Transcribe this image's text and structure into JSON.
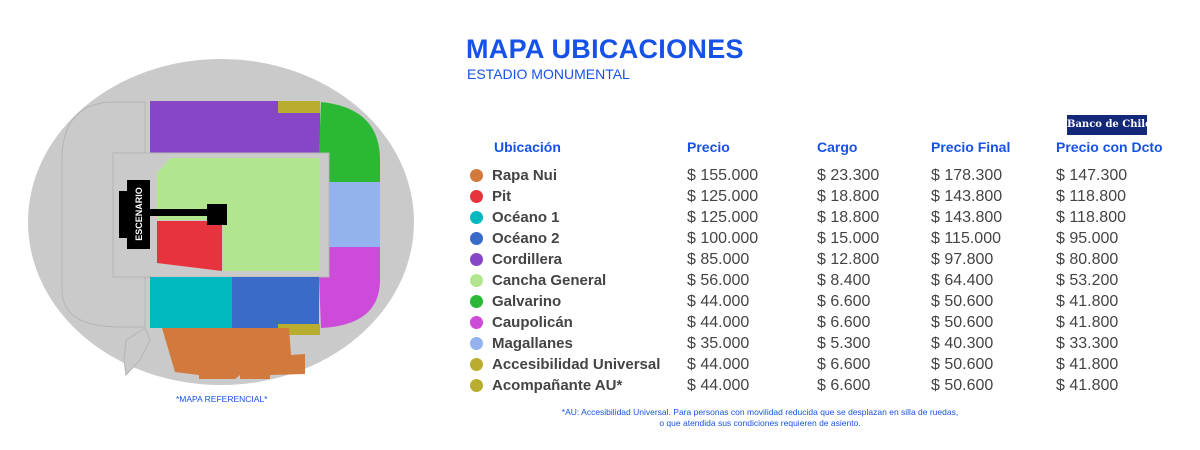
{
  "header": {
    "title": "MAPA UBICACIONES",
    "subtitle": "ESTADIO MONUMENTAL",
    "bank_logo": "Banco de Chile"
  },
  "map": {
    "stage_label": "ESCENARIO",
    "note": "*MAPA REFERENCIAL*"
  },
  "table": {
    "columns": [
      "Ubicación",
      "Precio",
      "Cargo",
      "Precio Final",
      "Precio con Dcto"
    ],
    "rows": [
      {
        "name": "Rapa Nui",
        "color": "#d27a3e",
        "precio": "$ 155.000",
        "cargo": "$ 23.300",
        "final": "$ 178.300",
        "dcto": "$ 147.300"
      },
      {
        "name": "Pit",
        "color": "#e8323e",
        "precio": "$ 125.000",
        "cargo": "$ 18.800",
        "final": "$ 143.800",
        "dcto": "$ 118.800"
      },
      {
        "name": "Océano 1",
        "color": "#00b8c0",
        "precio": "$ 125.000",
        "cargo": "$ 18.800",
        "final": "$ 143.800",
        "dcto": "$ 118.800"
      },
      {
        "name": "Océano 2",
        "color": "#3a6bc8",
        "precio": "$ 100.000",
        "cargo": "$ 15.000",
        "final": "$ 115.000",
        "dcto": "$ 95.000"
      },
      {
        "name": "Cordillera",
        "color": "#8646c6",
        "precio": "$ 85.000",
        "cargo": "$ 12.800",
        "final": "$ 97.800",
        "dcto": "$ 80.800"
      },
      {
        "name": "Cancha General",
        "color": "#b2e68e",
        "precio": "$ 56.000",
        "cargo": "$ 8.400",
        "final": "$ 64.400",
        "dcto": "$ 53.200"
      },
      {
        "name": "Galvarino",
        "color": "#2bb935",
        "precio": "$ 44.000",
        "cargo": "$ 6.600",
        "final": "$ 50.600",
        "dcto": "$ 41.800"
      },
      {
        "name": "Caupolicán",
        "color": "#cd4bd9",
        "precio": "$ 44.000",
        "cargo": "$ 6.600",
        "final": "$ 50.600",
        "dcto": "$ 41.800"
      },
      {
        "name": "Magallanes",
        "color": "#93b2ee",
        "precio": "$ 35.000",
        "cargo": "$ 5.300",
        "final": "$ 40.300",
        "dcto": "$ 33.300"
      },
      {
        "name": "Accesibilidad Universal",
        "color": "#b9ad2f",
        "precio": "$ 44.000",
        "cargo": "$ 6.600",
        "final": "$ 50.600",
        "dcto": "$ 41.800"
      },
      {
        "name": "Acompañante AU*",
        "color": "#b9ad2f",
        "precio": "$ 44.000",
        "cargo": "$ 6.600",
        "final": "$ 50.600",
        "dcto": "$ 41.800"
      }
    ]
  },
  "footnote": {
    "line1": "*AU: Accesibilidad Universal. Para personas con movilidad reducida que se desplazan en silla de ruedas,",
    "line2": "o que atendida sus condiciones requieren de asiento."
  }
}
